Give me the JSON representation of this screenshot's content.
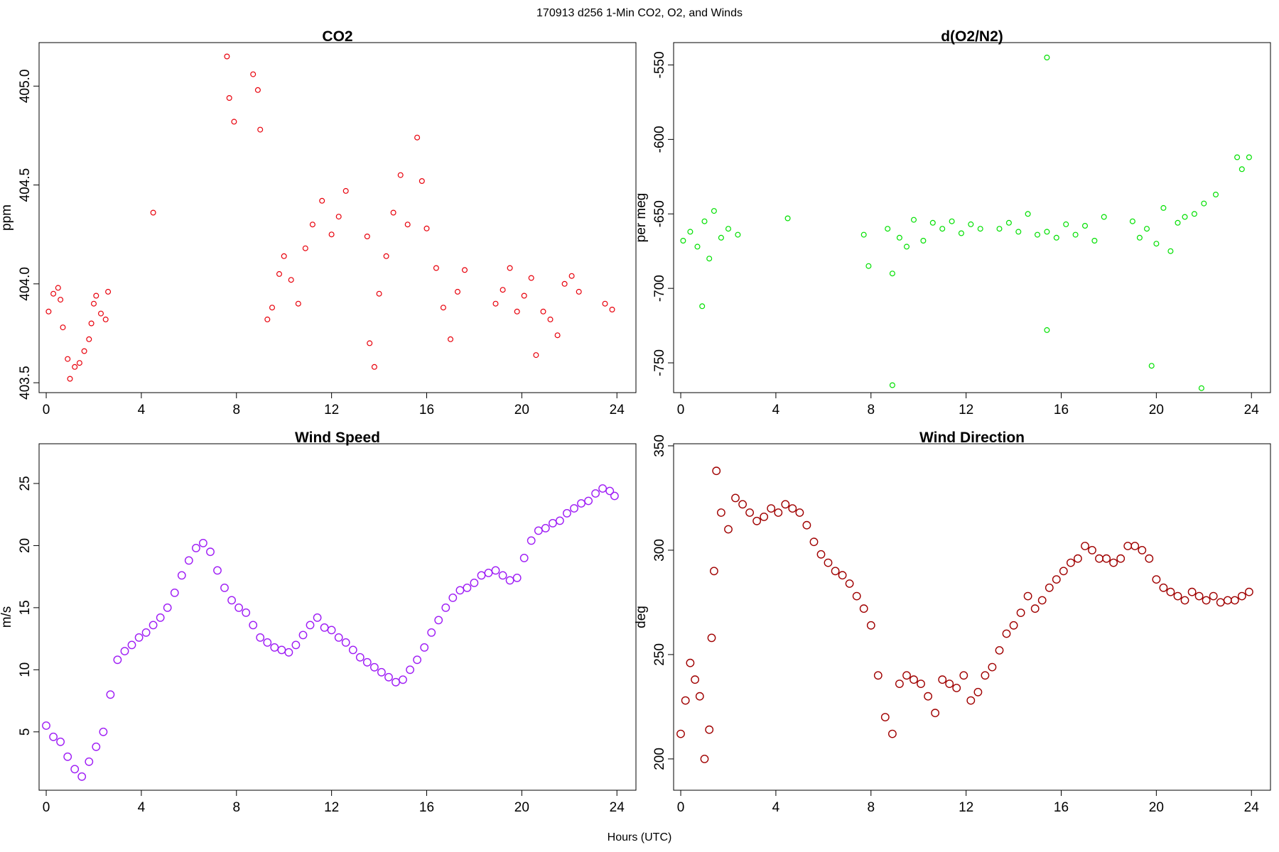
{
  "header": {
    "title": "170913   d256   1-Min CO2, O2, and Winds",
    "xlabel": "Hours (UTC)"
  },
  "chart_data": [
    {
      "type": "scatter",
      "title": "CO2",
      "xlabel": "Hours (UTC)",
      "ylabel": "ppm",
      "xlim": [
        -0.3,
        24.8
      ],
      "ylim": [
        403.45,
        405.22
      ],
      "xticks": [
        "0",
        "4",
        "8",
        "12",
        "16",
        "20",
        "24"
      ],
      "yticks": [
        "403.5",
        "404.0",
        "404.5",
        "405.0"
      ],
      "color": "#e8000b",
      "points": [
        [
          0.1,
          403.86
        ],
        [
          0.3,
          403.95
        ],
        [
          0.5,
          403.98
        ],
        [
          0.6,
          403.92
        ],
        [
          0.7,
          403.78
        ],
        [
          0.9,
          403.62
        ],
        [
          1.0,
          403.52
        ],
        [
          1.2,
          403.58
        ],
        [
          1.4,
          403.6
        ],
        [
          1.6,
          403.66
        ],
        [
          1.8,
          403.72
        ],
        [
          1.9,
          403.8
        ],
        [
          2.0,
          403.9
        ],
        [
          2.1,
          403.94
        ],
        [
          2.3,
          403.85
        ],
        [
          2.5,
          403.82
        ],
        [
          2.6,
          403.96
        ],
        [
          4.5,
          404.36
        ],
        [
          7.6,
          405.15
        ],
        [
          7.7,
          404.94
        ],
        [
          7.9,
          404.82
        ],
        [
          8.7,
          405.06
        ],
        [
          8.9,
          404.98
        ],
        [
          9.0,
          404.78
        ],
        [
          9.3,
          403.82
        ],
        [
          9.5,
          403.88
        ],
        [
          9.8,
          404.05
        ],
        [
          10.0,
          404.14
        ],
        [
          10.3,
          404.02
        ],
        [
          10.6,
          403.9
        ],
        [
          10.9,
          404.18
        ],
        [
          11.2,
          404.3
        ],
        [
          11.6,
          404.42
        ],
        [
          12.0,
          404.25
        ],
        [
          12.3,
          404.34
        ],
        [
          12.6,
          404.47
        ],
        [
          13.5,
          404.24
        ],
        [
          13.6,
          403.7
        ],
        [
          13.8,
          403.58
        ],
        [
          14.0,
          403.95
        ],
        [
          14.3,
          404.14
        ],
        [
          14.6,
          404.36
        ],
        [
          14.9,
          404.55
        ],
        [
          15.2,
          404.3
        ],
        [
          15.6,
          404.74
        ],
        [
          15.8,
          404.52
        ],
        [
          16.0,
          404.28
        ],
        [
          16.4,
          404.08
        ],
        [
          16.7,
          403.88
        ],
        [
          17.0,
          403.72
        ],
        [
          17.3,
          403.96
        ],
        [
          17.6,
          404.07
        ],
        [
          18.9,
          403.9
        ],
        [
          19.2,
          403.97
        ],
        [
          19.5,
          404.08
        ],
        [
          19.8,
          403.86
        ],
        [
          20.1,
          403.94
        ],
        [
          20.4,
          404.03
        ],
        [
          20.6,
          403.64
        ],
        [
          20.9,
          403.86
        ],
        [
          21.2,
          403.82
        ],
        [
          21.5,
          403.74
        ],
        [
          21.8,
          404.0
        ],
        [
          22.1,
          404.04
        ],
        [
          22.4,
          403.96
        ],
        [
          23.5,
          403.9
        ],
        [
          23.8,
          403.87
        ]
      ]
    },
    {
      "type": "scatter",
      "title": "d(O2/N2)",
      "xlabel": "Hours (UTC)",
      "ylabel": "per meg",
      "xlim": [
        -0.3,
        24.8
      ],
      "ylim": [
        -770,
        -535
      ],
      "xticks": [
        "0",
        "4",
        "8",
        "12",
        "16",
        "20",
        "24"
      ],
      "yticks": [
        "-750",
        "-700",
        "-650",
        "-600",
        "-550"
      ],
      "color": "#00e000",
      "points": [
        [
          0.1,
          -668
        ],
        [
          0.4,
          -662
        ],
        [
          0.7,
          -672
        ],
        [
          0.9,
          -712
        ],
        [
          1.0,
          -655
        ],
        [
          1.2,
          -680
        ],
        [
          1.4,
          -648
        ],
        [
          1.7,
          -666
        ],
        [
          2.0,
          -660
        ],
        [
          2.4,
          -664
        ],
        [
          4.5,
          -653
        ],
        [
          7.7,
          -664
        ],
        [
          7.9,
          -685
        ],
        [
          8.7,
          -660
        ],
        [
          8.9,
          -690
        ],
        [
          9.2,
          -666
        ],
        [
          9.5,
          -672
        ],
        [
          9.8,
          -654
        ],
        [
          10.2,
          -668
        ],
        [
          10.6,
          -656
        ],
        [
          11.0,
          -660
        ],
        [
          11.4,
          -655
        ],
        [
          11.8,
          -663
        ],
        [
          12.2,
          -657
        ],
        [
          12.6,
          -660
        ],
        [
          13.4,
          -660
        ],
        [
          13.8,
          -656
        ],
        [
          14.2,
          -662
        ],
        [
          14.6,
          -650
        ],
        [
          15.0,
          -664
        ],
        [
          15.4,
          -662
        ],
        [
          15.8,
          -666
        ],
        [
          16.2,
          -657
        ],
        [
          16.6,
          -664
        ],
        [
          17.0,
          -658
        ],
        [
          17.4,
          -668
        ],
        [
          17.8,
          -652
        ],
        [
          19.0,
          -655
        ],
        [
          19.3,
          -666
        ],
        [
          19.6,
          -660
        ],
        [
          20.0,
          -670
        ],
        [
          20.3,
          -646
        ],
        [
          20.6,
          -675
        ],
        [
          20.9,
          -656
        ],
        [
          21.2,
          -652
        ],
        [
          21.6,
          -650
        ],
        [
          22.0,
          -643
        ],
        [
          22.5,
          -637
        ],
        [
          23.4,
          -612
        ],
        [
          23.6,
          -620
        ],
        [
          23.9,
          -612
        ],
        [
          15.4,
          -545
        ],
        [
          8.9,
          -765
        ],
        [
          19.8,
          -752
        ],
        [
          21.9,
          -767
        ],
        [
          15.4,
          -728
        ]
      ]
    },
    {
      "type": "scatter",
      "title": "Wind Speed",
      "xlabel": "Hours (UTC)",
      "ylabel": "m/s",
      "xlim": [
        -0.3,
        24.8
      ],
      "ylim": [
        0.3,
        28.2
      ],
      "xticks": [
        "0",
        "4",
        "8",
        "12",
        "16",
        "20",
        "24"
      ],
      "yticks": [
        "5",
        "10",
        "15",
        "20",
        "25"
      ],
      "color": "#9e1bf5",
      "points": [
        [
          0.0,
          5.5
        ],
        [
          0.3,
          4.6
        ],
        [
          0.6,
          4.2
        ],
        [
          0.9,
          3.0
        ],
        [
          1.2,
          2.0
        ],
        [
          1.5,
          1.4
        ],
        [
          1.8,
          2.6
        ],
        [
          2.1,
          3.8
        ],
        [
          2.4,
          5.0
        ],
        [
          2.7,
          8.0
        ],
        [
          3.0,
          10.8
        ],
        [
          3.3,
          11.5
        ],
        [
          3.6,
          12.0
        ],
        [
          3.9,
          12.6
        ],
        [
          4.2,
          13.0
        ],
        [
          4.5,
          13.6
        ],
        [
          4.8,
          14.2
        ],
        [
          5.1,
          15.0
        ],
        [
          5.4,
          16.2
        ],
        [
          5.7,
          17.6
        ],
        [
          6.0,
          18.8
        ],
        [
          6.3,
          19.8
        ],
        [
          6.6,
          20.2
        ],
        [
          6.9,
          19.5
        ],
        [
          7.2,
          18.0
        ],
        [
          7.5,
          16.6
        ],
        [
          7.8,
          15.6
        ],
        [
          8.1,
          15.0
        ],
        [
          8.4,
          14.6
        ],
        [
          8.7,
          13.6
        ],
        [
          9.0,
          12.6
        ],
        [
          9.3,
          12.2
        ],
        [
          9.6,
          11.8
        ],
        [
          9.9,
          11.6
        ],
        [
          10.2,
          11.4
        ],
        [
          10.5,
          12.0
        ],
        [
          10.8,
          12.8
        ],
        [
          11.1,
          13.6
        ],
        [
          11.4,
          14.2
        ],
        [
          11.7,
          13.4
        ],
        [
          12.0,
          13.2
        ],
        [
          12.3,
          12.6
        ],
        [
          12.6,
          12.2
        ],
        [
          12.9,
          11.6
        ],
        [
          13.2,
          11.0
        ],
        [
          13.5,
          10.6
        ],
        [
          13.8,
          10.2
        ],
        [
          14.1,
          9.8
        ],
        [
          14.4,
          9.4
        ],
        [
          14.7,
          9.0
        ],
        [
          15.0,
          9.2
        ],
        [
          15.3,
          10.0
        ],
        [
          15.6,
          10.8
        ],
        [
          15.9,
          11.8
        ],
        [
          16.2,
          13.0
        ],
        [
          16.5,
          14.0
        ],
        [
          16.8,
          15.0
        ],
        [
          17.1,
          15.8
        ],
        [
          17.4,
          16.4
        ],
        [
          17.7,
          16.6
        ],
        [
          18.0,
          17.0
        ],
        [
          18.3,
          17.6
        ],
        [
          18.6,
          17.8
        ],
        [
          18.9,
          18.0
        ],
        [
          19.2,
          17.6
        ],
        [
          19.5,
          17.2
        ],
        [
          19.8,
          17.4
        ],
        [
          20.1,
          19.0
        ],
        [
          20.4,
          20.4
        ],
        [
          20.7,
          21.2
        ],
        [
          21.0,
          21.4
        ],
        [
          21.3,
          21.8
        ],
        [
          21.6,
          22.0
        ],
        [
          21.9,
          22.6
        ],
        [
          22.2,
          23.0
        ],
        [
          22.5,
          23.4
        ],
        [
          22.8,
          23.6
        ],
        [
          23.1,
          24.2
        ],
        [
          23.4,
          24.6
        ],
        [
          23.7,
          24.4
        ],
        [
          23.9,
          24.0
        ]
      ]
    },
    {
      "type": "scatter",
      "title": "Wind Direction",
      "xlabel": "Hours (UTC)",
      "ylabel": "deg",
      "xlim": [
        -0.3,
        24.8
      ],
      "ylim": [
        185,
        351
      ],
      "xticks": [
        "0",
        "4",
        "8",
        "12",
        "16",
        "20",
        "24"
      ],
      "yticks": [
        "200",
        "250",
        "300",
        "350"
      ],
      "color": "#a00000",
      "points": [
        [
          0.0,
          212
        ],
        [
          0.2,
          228
        ],
        [
          0.4,
          246
        ],
        [
          0.6,
          238
        ],
        [
          0.8,
          230
        ],
        [
          1.0,
          200
        ],
        [
          1.2,
          214
        ],
        [
          1.3,
          258
        ],
        [
          1.4,
          290
        ],
        [
          1.5,
          338
        ],
        [
          1.7,
          318
        ],
        [
          2.0,
          310
        ],
        [
          2.3,
          325
        ],
        [
          2.6,
          322
        ],
        [
          2.9,
          318
        ],
        [
          3.2,
          314
        ],
        [
          3.5,
          316
        ],
        [
          3.8,
          320
        ],
        [
          4.1,
          318
        ],
        [
          4.4,
          322
        ],
        [
          4.7,
          320
        ],
        [
          5.0,
          318
        ],
        [
          5.3,
          312
        ],
        [
          5.6,
          304
        ],
        [
          5.9,
          298
        ],
        [
          6.2,
          294
        ],
        [
          6.5,
          290
        ],
        [
          6.8,
          288
        ],
        [
          7.1,
          284
        ],
        [
          7.4,
          278
        ],
        [
          7.7,
          272
        ],
        [
          8.0,
          264
        ],
        [
          8.3,
          240
        ],
        [
          8.6,
          220
        ],
        [
          8.9,
          212
        ],
        [
          9.2,
          236
        ],
        [
          9.5,
          240
        ],
        [
          9.8,
          238
        ],
        [
          10.1,
          236
        ],
        [
          10.4,
          230
        ],
        [
          10.7,
          222
        ],
        [
          11.0,
          238
        ],
        [
          11.3,
          236
        ],
        [
          11.6,
          234
        ],
        [
          11.9,
          240
        ],
        [
          12.2,
          228
        ],
        [
          12.5,
          232
        ],
        [
          12.8,
          240
        ],
        [
          13.1,
          244
        ],
        [
          13.4,
          252
        ],
        [
          13.7,
          260
        ],
        [
          14.0,
          264
        ],
        [
          14.3,
          270
        ],
        [
          14.6,
          278
        ],
        [
          14.9,
          272
        ],
        [
          15.2,
          276
        ],
        [
          15.5,
          282
        ],
        [
          15.8,
          286
        ],
        [
          16.1,
          290
        ],
        [
          16.4,
          294
        ],
        [
          16.7,
          296
        ],
        [
          17.0,
          302
        ],
        [
          17.3,
          300
        ],
        [
          17.6,
          296
        ],
        [
          17.9,
          296
        ],
        [
          18.2,
          294
        ],
        [
          18.5,
          296
        ],
        [
          18.8,
          302
        ],
        [
          19.1,
          302
        ],
        [
          19.4,
          300
        ],
        [
          19.7,
          296
        ],
        [
          20.0,
          286
        ],
        [
          20.3,
          282
        ],
        [
          20.6,
          280
        ],
        [
          20.9,
          278
        ],
        [
          21.2,
          276
        ],
        [
          21.5,
          280
        ],
        [
          21.8,
          278
        ],
        [
          22.1,
          276
        ],
        [
          22.4,
          278
        ],
        [
          22.7,
          275
        ],
        [
          23.0,
          276
        ],
        [
          23.3,
          276
        ],
        [
          23.6,
          278
        ],
        [
          23.9,
          280
        ]
      ]
    }
  ]
}
